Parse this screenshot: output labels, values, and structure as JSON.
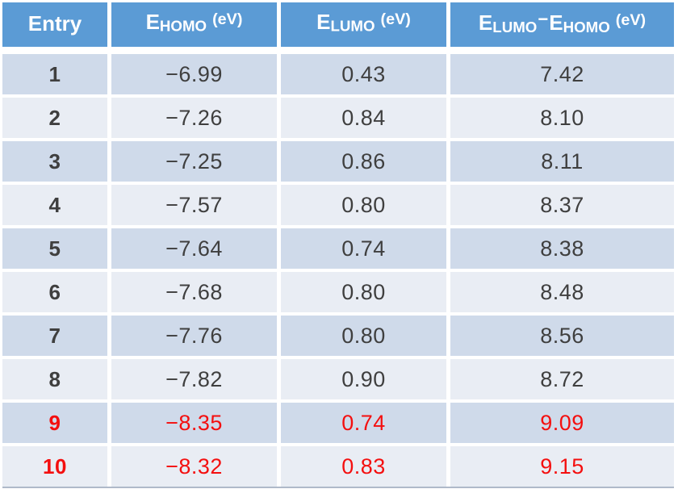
{
  "chart_data": {
    "type": "table",
    "columns": [
      "Entry",
      "E_HOMO (eV)",
      "E_LUMO (eV)",
      "E_LUMO−E_HOMO (eV)"
    ],
    "rows": [
      [
        1,
        -6.99,
        0.43,
        7.42
      ],
      [
        2,
        -7.26,
        0.84,
        8.1
      ],
      [
        3,
        -7.25,
        0.86,
        8.11
      ],
      [
        4,
        -7.57,
        0.8,
        8.37
      ],
      [
        5,
        -7.64,
        0.74,
        8.38
      ],
      [
        6,
        -7.68,
        0.8,
        8.48
      ],
      [
        7,
        -7.76,
        0.8,
        8.56
      ],
      [
        8,
        -7.82,
        0.9,
        8.72
      ],
      [
        9,
        -8.35,
        0.74,
        9.09
      ],
      [
        10,
        -8.32,
        0.83,
        9.15
      ]
    ],
    "highlighted_entries": [
      9,
      10
    ],
    "legend_position": "none",
    "grid": "banded-rows"
  },
  "table": {
    "colors": {
      "header_bg": "#5B9BD5",
      "header_text": "#FFFFFF",
      "band_dark": "#CFDAEA",
      "band_light": "#E9EDF4",
      "body_text": "#3F3F3F",
      "highlight_text": "#F40F0F",
      "bottom_border": "#AFB9C9"
    },
    "header": {
      "entry": "Entry",
      "homo": {
        "e": "E",
        "sub": "HOMO",
        "unit": "(eV)"
      },
      "lumo": {
        "e": "E",
        "sub": "LUMO",
        "unit": "(eV)"
      },
      "gap": {
        "e1": "E",
        "sub1": "LUMO",
        "minus": "−",
        "e2": "E",
        "sub2": "HOMO",
        "unit": "(eV)"
      }
    },
    "rows": [
      {
        "entry": "1",
        "homo": "−6.99",
        "lumo": "0.43",
        "gap": "7.42",
        "highlight": false
      },
      {
        "entry": "2",
        "homo": "−7.26",
        "lumo": "0.84",
        "gap": "8.10",
        "highlight": false
      },
      {
        "entry": "3",
        "homo": "−7.25",
        "lumo": "0.86",
        "gap": "8.11",
        "highlight": false
      },
      {
        "entry": "4",
        "homo": "−7.57",
        "lumo": "0.80",
        "gap": "8.37",
        "highlight": false
      },
      {
        "entry": "5",
        "homo": "−7.64",
        "lumo": "0.74",
        "gap": "8.38",
        "highlight": false
      },
      {
        "entry": "6",
        "homo": "−7.68",
        "lumo": "0.80",
        "gap": "8.48",
        "highlight": false
      },
      {
        "entry": "7",
        "homo": "−7.76",
        "lumo": "0.80",
        "gap": "8.56",
        "highlight": false
      },
      {
        "entry": "8",
        "homo": "−7.82",
        "lumo": "0.90",
        "gap": "8.72",
        "highlight": false
      },
      {
        "entry": "9",
        "homo": "−8.35",
        "lumo": "0.74",
        "gap": "9.09",
        "highlight": true
      },
      {
        "entry": "10",
        "homo": "−8.32",
        "lumo": "0.83",
        "gap": "9.15",
        "highlight": true
      }
    ]
  }
}
